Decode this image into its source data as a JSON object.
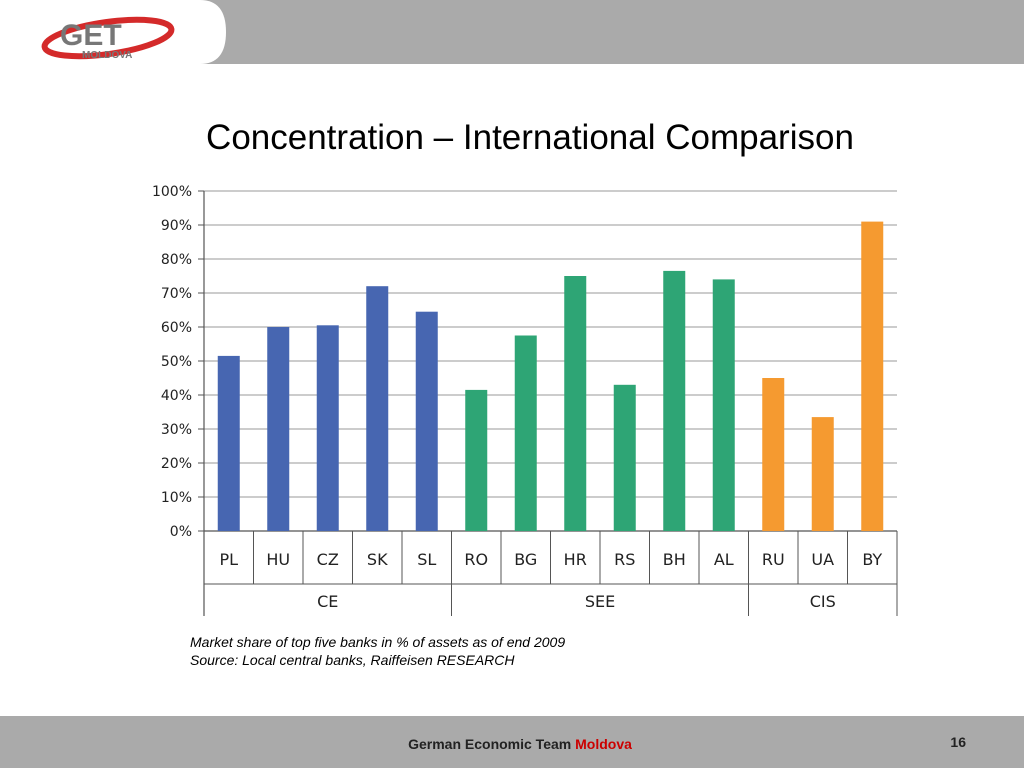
{
  "header": {
    "logo_text": "GET",
    "logo_subtext": "MOLDOVA"
  },
  "slide": {
    "title": "Concentration – International Comparison"
  },
  "chart_data": {
    "type": "bar",
    "categories": [
      "PL",
      "HU",
      "CZ",
      "SK",
      "SL",
      "RO",
      "BG",
      "HR",
      "RS",
      "BH",
      "AL",
      "RU",
      "UA",
      "BY"
    ],
    "values": [
      51.5,
      60,
      60.5,
      72,
      64.5,
      41.5,
      57.5,
      75,
      43,
      76.5,
      74,
      45,
      33.5,
      91
    ],
    "groups": [
      {
        "name": "CE",
        "categories": [
          "PL",
          "HU",
          "CZ",
          "SK",
          "SL"
        ],
        "color": "#4766b1"
      },
      {
        "name": "SEE",
        "categories": [
          "RO",
          "BG",
          "HR",
          "RS",
          "BH",
          "AL"
        ],
        "color": "#2ea575"
      },
      {
        "name": "CIS",
        "categories": [
          "RU",
          "UA",
          "BY"
        ],
        "color": "#f59a30"
      }
    ],
    "y_ticks": [
      "0%",
      "10%",
      "20%",
      "30%",
      "40%",
      "50%",
      "60%",
      "70%",
      "80%",
      "90%",
      "100%"
    ],
    "ylim": [
      0,
      100
    ],
    "grid": true,
    "title": "",
    "xlabel": "",
    "ylabel": ""
  },
  "caption": {
    "line1": "Market share of top five banks in % of assets as of end 2009",
    "line2": "Source: Local central banks, Raiffeisen RESEARCH"
  },
  "footer": {
    "text": "German Economic Team",
    "accent": "Moldova",
    "accent_color": "#cc0000",
    "page_number": "16"
  }
}
